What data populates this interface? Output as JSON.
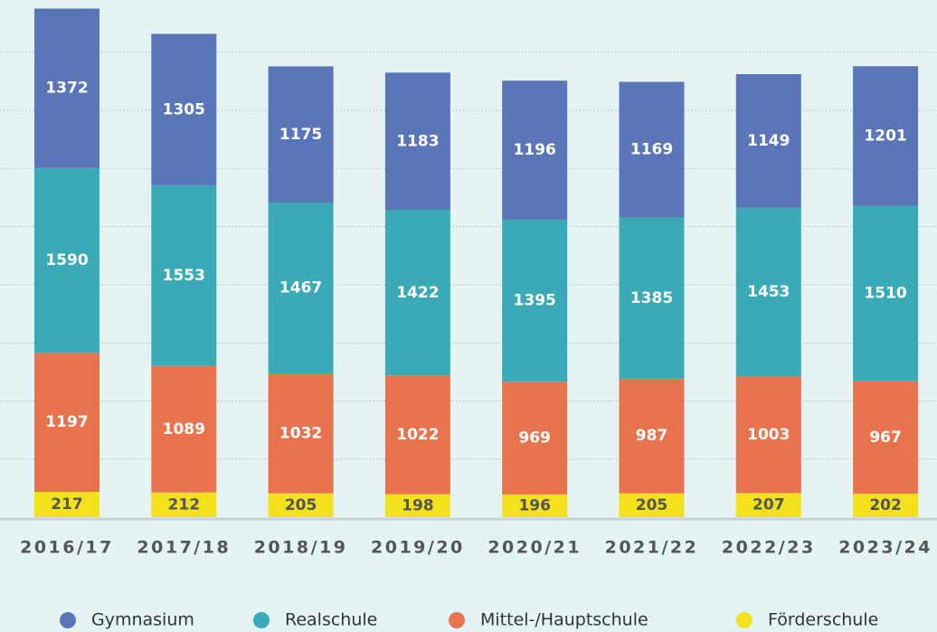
{
  "chart_data": {
    "type": "stacked_bar",
    "categories": [
      "2016/17",
      "2017/18",
      "2018/19",
      "2019/20",
      "2020/21",
      "2021/22",
      "2022/23",
      "2023/24"
    ],
    "series": [
      {
        "name": "Gymnasium",
        "color": "#5a75b8",
        "values": [
          1372,
          1305,
          1175,
          1183,
          1196,
          1169,
          1149,
          1201
        ]
      },
      {
        "name": "Realschule",
        "color": "#3aaab7",
        "values": [
          1590,
          1553,
          1467,
          1422,
          1395,
          1385,
          1453,
          1510
        ]
      },
      {
        "name": "Mittel-/Hauptschule",
        "color": "#e8744f",
        "values": [
          1197,
          1089,
          1032,
          1022,
          969,
          987,
          1003,
          967
        ]
      },
      {
        "name": "Förderschule",
        "color": "#f3e11d",
        "values": [
          217,
          212,
          205,
          198,
          196,
          205,
          207,
          202
        ]
      }
    ],
    "ylim": [
      0,
      4450
    ],
    "yticks": [
      500,
      1000,
      1500,
      2000,
      2500,
      3000,
      3500,
      4000
    ],
    "grid": true,
    "legend": "bottom"
  }
}
